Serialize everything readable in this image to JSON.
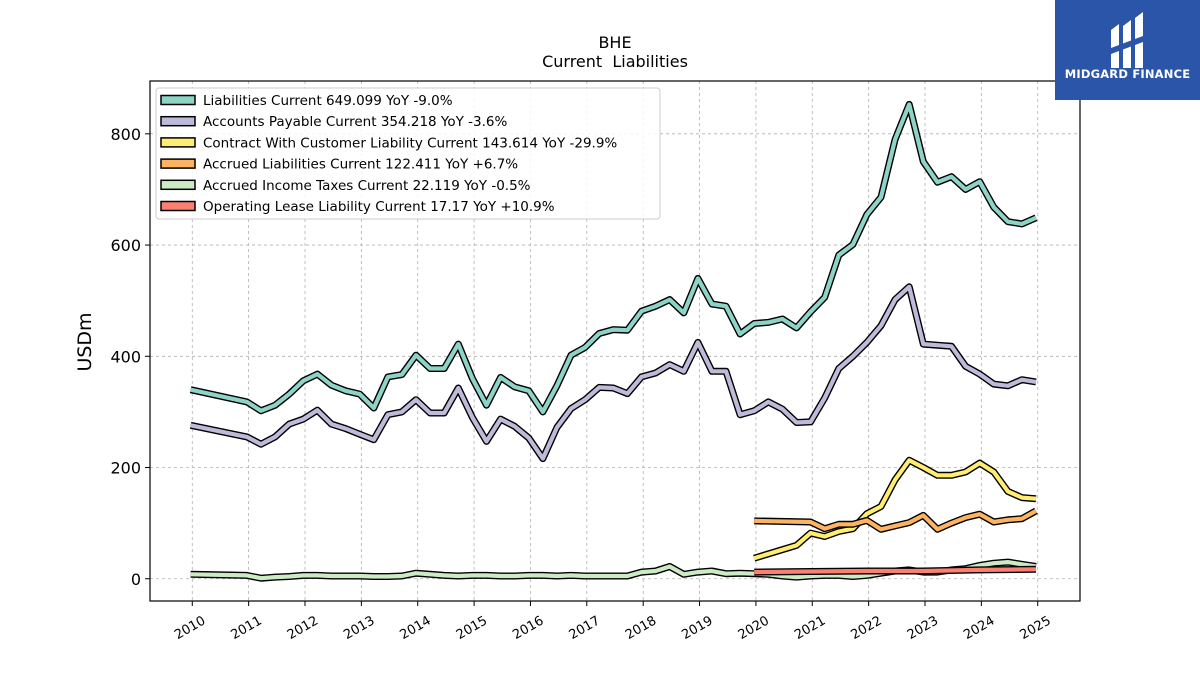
{
  "brand": {
    "name": "MIDGARD FINANCE",
    "bg_color": "#2a55a8"
  },
  "chart_data": {
    "type": "line",
    "title": "BHE",
    "subtitle": "Current  Liabilities",
    "ylabel": "USDm",
    "xlabel": "",
    "ylim": [
      -40,
      895
    ],
    "xlim": [
      2009.25,
      2025.75
    ],
    "yticks": [
      0,
      200,
      400,
      600,
      800
    ],
    "xticks": [
      "2010",
      "2011",
      "2012",
      "2013",
      "2014",
      "2015",
      "2016",
      "2017",
      "2018",
      "2019",
      "2020",
      "2021",
      "2022",
      "2023",
      "2024",
      "2025"
    ],
    "grid": true,
    "legend_position": "top-left",
    "series": [
      {
        "name": "Liabilities Current",
        "legend": "Liabilities Current  649.099 YoY -9.0%",
        "color": "#8dd3c7",
        "x": [
          2009.97,
          2010.97,
          2011.22,
          2011.47,
          2011.72,
          2011.97,
          2012.22,
          2012.47,
          2012.72,
          2012.97,
          2013.22,
          2013.47,
          2013.72,
          2013.97,
          2014.22,
          2014.47,
          2014.72,
          2014.97,
          2015.22,
          2015.47,
          2015.72,
          2015.97,
          2016.22,
          2016.47,
          2016.72,
          2016.97,
          2017.22,
          2017.47,
          2017.72,
          2017.97,
          2018.22,
          2018.47,
          2018.72,
          2018.97,
          2019.22,
          2019.47,
          2019.72,
          2019.97,
          2020.22,
          2020.47,
          2020.72,
          2020.97,
          2021.22,
          2021.47,
          2021.72,
          2021.97,
          2022.22,
          2022.47,
          2022.72,
          2022.97,
          2023.22,
          2023.47,
          2023.72,
          2023.97,
          2024.22,
          2024.47,
          2024.72,
          2024.97
        ],
        "y": [
          340,
          318,
          302,
          312,
          332,
          356,
          368,
          348,
          338,
          332,
          307,
          363,
          367,
          402,
          378,
          378,
          422,
          360,
          312,
          362,
          345,
          338,
          300,
          347,
          402,
          416,
          441,
          448,
          447,
          481,
          490,
          502,
          478,
          540,
          494,
          490,
          440,
          459,
          461,
          467,
          451,
          480,
          506,
          582,
          601,
          655,
          686,
          790,
          853,
          750,
          713,
          723,
          700,
          714,
          668,
          642,
          638,
          649
        ]
      },
      {
        "name": "Accounts Payable Current",
        "legend": "Accounts Payable Current  354.218 YoY -3.6%",
        "color": "#bebada",
        "x": [
          2009.97,
          2010.97,
          2011.22,
          2011.47,
          2011.72,
          2011.97,
          2012.22,
          2012.47,
          2012.72,
          2012.97,
          2013.22,
          2013.47,
          2013.72,
          2013.97,
          2014.22,
          2014.47,
          2014.72,
          2014.97,
          2015.22,
          2015.47,
          2015.72,
          2015.97,
          2016.22,
          2016.47,
          2016.72,
          2016.97,
          2017.22,
          2017.47,
          2017.72,
          2017.97,
          2018.22,
          2018.47,
          2018.72,
          2018.97,
          2019.22,
          2019.47,
          2019.72,
          2019.97,
          2020.22,
          2020.47,
          2020.72,
          2020.97,
          2021.22,
          2021.47,
          2021.72,
          2021.97,
          2022.22,
          2022.47,
          2022.72,
          2022.97,
          2023.22,
          2023.47,
          2023.72,
          2023.97,
          2024.22,
          2024.47,
          2024.72,
          2024.97
        ],
        "y": [
          276,
          255,
          242,
          255,
          278,
          287,
          303,
          278,
          270,
          260,
          250,
          295,
          300,
          322,
          298,
          298,
          343,
          290,
          247,
          287,
          274,
          253,
          216,
          272,
          306,
          322,
          344,
          343,
          333,
          363,
          370,
          385,
          373,
          425,
          373,
          373,
          295,
          302,
          318,
          305,
          281,
          282,
          325,
          378,
          400,
          425,
          455,
          502,
          525,
          422,
          420,
          418,
          382,
          368,
          350,
          347,
          358,
          354
        ]
      },
      {
        "name": "Contract With Customer Liability Current",
        "legend": "Contract With Customer Liability Current  143.614 YoY -29.9%",
        "color": "#ffed6f",
        "x": [
          2019.97,
          2020.72,
          2020.97,
          2021.22,
          2021.47,
          2021.72,
          2021.97,
          2022.22,
          2022.47,
          2022.72,
          2022.97,
          2023.22,
          2023.47,
          2023.72,
          2023.97,
          2024.22,
          2024.47,
          2024.72,
          2024.97
        ],
        "y": [
          37,
          60,
          82,
          76,
          85,
          90,
          117,
          130,
          178,
          213,
          200,
          186,
          186,
          192,
          208,
          192,
          157,
          146,
          144
        ]
      },
      {
        "name": "Accrued Liabilities Current",
        "legend": "Accrued Liabilities Current  122.411 YoY +6.7%",
        "color": "#fdb462",
        "x": [
          2019.97,
          2020.97,
          2021.22,
          2021.47,
          2021.72,
          2021.97,
          2022.22,
          2022.47,
          2022.72,
          2022.97,
          2023.22,
          2023.47,
          2023.72,
          2023.97,
          2024.22,
          2024.47,
          2024.72,
          2024.97
        ],
        "y": [
          104,
          102,
          90,
          98,
          98,
          105,
          89,
          95,
          101,
          114,
          89,
          100,
          110,
          116,
          102,
          106,
          108,
          122
        ]
      },
      {
        "name": "Accrued Income Taxes Current",
        "legend": "Accrued Income Taxes Current  22.119 YoY -0.5%",
        "color": "#ccebc5",
        "x": [
          2009.97,
          2010.97,
          2011.22,
          2011.47,
          2011.72,
          2011.97,
          2012.22,
          2012.47,
          2012.72,
          2012.97,
          2013.22,
          2013.47,
          2013.72,
          2013.97,
          2014.22,
          2014.47,
          2014.72,
          2014.97,
          2015.22,
          2015.47,
          2015.72,
          2015.97,
          2016.22,
          2016.47,
          2016.72,
          2016.97,
          2017.22,
          2017.47,
          2017.72,
          2017.97,
          2018.22,
          2018.47,
          2018.72,
          2018.97,
          2019.22,
          2019.47,
          2019.72,
          2019.97,
          2020.22,
          2020.47,
          2020.72,
          2020.97,
          2021.22,
          2021.47,
          2021.72,
          2021.97,
          2022.22,
          2022.47,
          2022.72,
          2022.97,
          2023.22,
          2023.47,
          2023.72,
          2023.97,
          2024.22,
          2024.47,
          2024.72,
          2024.97
        ],
        "y": [
          8,
          6,
          1,
          3,
          4,
          6,
          6,
          5,
          5,
          5,
          4,
          4,
          5,
          10,
          8,
          6,
          5,
          6,
          6,
          5,
          5,
          6,
          6,
          5,
          6,
          5,
          5,
          5,
          5,
          12,
          14,
          22,
          8,
          12,
          14,
          9,
          10,
          9,
          8,
          5,
          3,
          5,
          6,
          6,
          4,
          6,
          10,
          14,
          16,
          12,
          12,
          16,
          18,
          24,
          28,
          30,
          26,
          22
        ]
      },
      {
        "name": "Operating Lease Liability Current",
        "legend": "Operating Lease Liability Current  17.17 YoY +10.9%",
        "color": "#fb8072",
        "x": [
          2019.97,
          2020.97,
          2021.97,
          2022.97,
          2023.97,
          2024.97
        ],
        "y": [
          12,
          13,
          14,
          14,
          16,
          17
        ]
      }
    ]
  }
}
